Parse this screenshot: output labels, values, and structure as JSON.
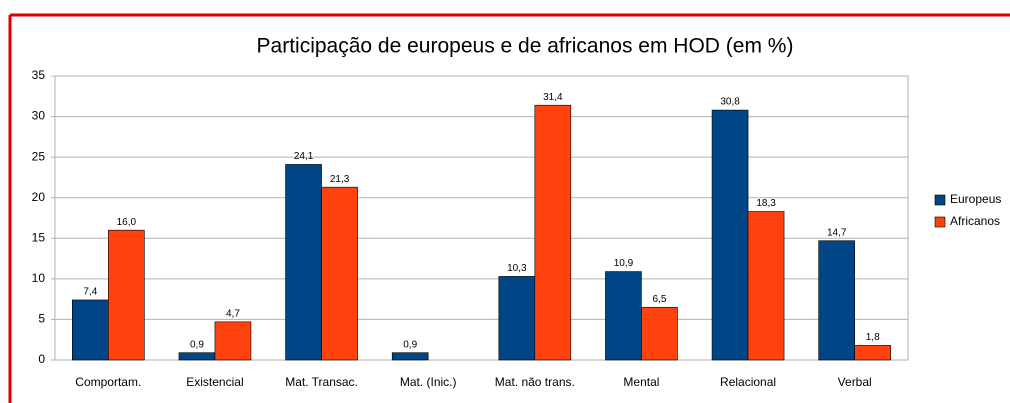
{
  "chart_data": {
    "type": "bar",
    "title": "Participação de europeus e de africanos em HOD (em %)",
    "categories": [
      "Comportam.",
      "Existencial",
      "Mat. Transac.",
      "Mat. (Inic.)",
      "Mat. não trans.",
      "Mental",
      "Relacional",
      "Verbal"
    ],
    "series": [
      {
        "name": "Europeus",
        "color": "#004586",
        "values": [
          7.4,
          0.9,
          24.1,
          0.9,
          10.3,
          10.9,
          30.8,
          14.7
        ],
        "value_labels": [
          "7,4",
          "0,9",
          "24,1",
          "0,9",
          "10,3",
          "10,9",
          "30,8",
          "14,7"
        ]
      },
      {
        "name": "Africanos",
        "color": "#ff420e",
        "values": [
          16.0,
          4.7,
          21.3,
          null,
          31.4,
          6.5,
          18.3,
          1.8
        ],
        "value_labels": [
          "16,0",
          "4,7",
          "21,3",
          null,
          "31,4",
          "6,5",
          "18,3",
          "1,8"
        ]
      }
    ],
    "ylim": [
      0,
      35
    ],
    "yticks": [
      0,
      5,
      10,
      15,
      20,
      25,
      30,
      35
    ],
    "grid": true,
    "legend": "right"
  }
}
